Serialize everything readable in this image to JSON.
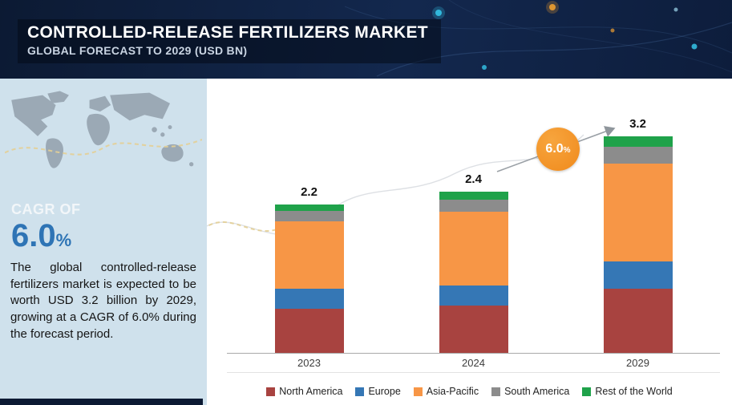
{
  "header": {
    "title": "CONTROLLED-RELEASE FERTILIZERS MARKET",
    "subtitle": "GLOBAL FORECAST TO 2029 (USD BN)"
  },
  "sidebar": {
    "cagr_label": "CAGR OF",
    "cagr_value": "6.0",
    "cagr_unit": "%",
    "description": "The global controlled-release fertilizers market is expected to be worth USD 3.2 billion by 2029, growing at a CAGR of 6.0% during the forecast period."
  },
  "growth_badge": {
    "value": "6.0",
    "unit": "%"
  },
  "colors": {
    "header_bg": "#0C1A33",
    "sidebar_bg": "#CFE1EC",
    "cagr_blue": "#2E74B5",
    "badge_orange": "#F08A1C",
    "axis_grey": "#A9A9A9"
  },
  "chart_data": {
    "type": "bar",
    "stacked": true,
    "title": "Controlled-Release Fertilizers Market, Global Forecast (USD BN)",
    "xlabel": "",
    "ylabel": "",
    "legend_position": "bottom",
    "grid": false,
    "categories": [
      "2023",
      "2024",
      "2029"
    ],
    "totals": [
      2.2,
      2.4,
      3.2
    ],
    "series": [
      {
        "name": "North America",
        "color": "#A84340",
        "values": [
          0.65,
          0.7,
          0.95
        ]
      },
      {
        "name": "Europe",
        "color": "#3577B5",
        "values": [
          0.3,
          0.3,
          0.4
        ]
      },
      {
        "name": "Asia-Pacific",
        "color": "#F79646",
        "values": [
          1.0,
          1.1,
          1.45
        ]
      },
      {
        "name": "South America",
        "color": "#8C8C8C",
        "values": [
          0.15,
          0.18,
          0.25
        ]
      },
      {
        "name": "Rest of the World",
        "color": "#1FA24A",
        "values": [
          0.1,
          0.12,
          0.15
        ]
      }
    ],
    "annotations": [
      {
        "text": "6.0%",
        "meaning": "CAGR 2024-2029"
      }
    ]
  }
}
